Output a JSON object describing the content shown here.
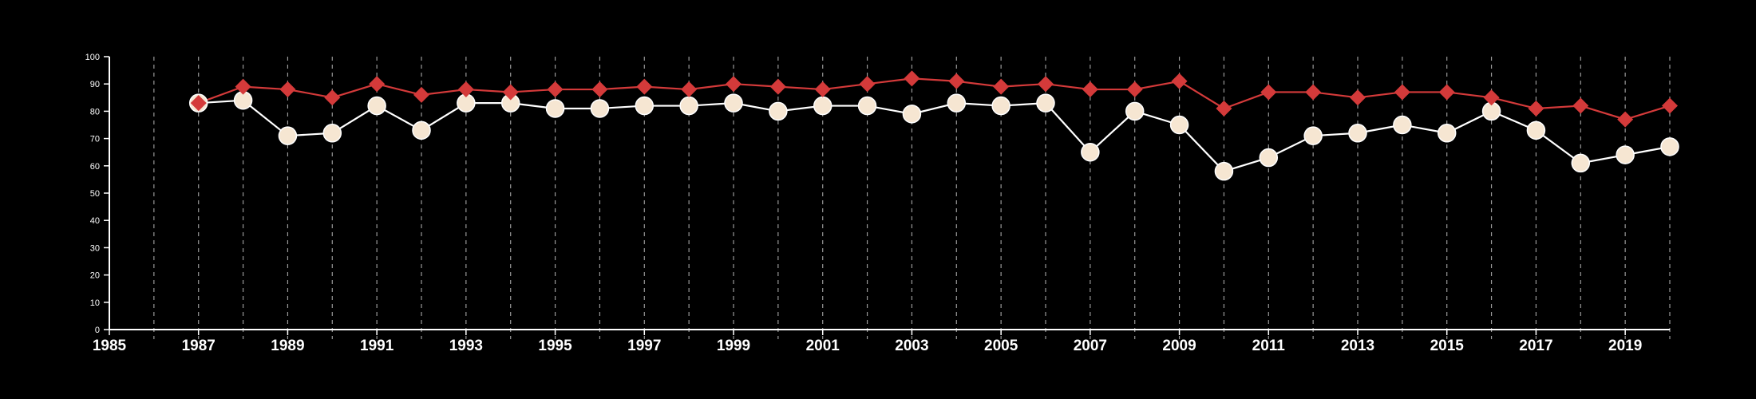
{
  "chart_data": {
    "type": "line",
    "title": "",
    "xlabel": "",
    "ylabel": "",
    "xlim": [
      1985,
      2020
    ],
    "ylim": [
      0,
      100
    ],
    "x_ticks": [
      1985,
      1987,
      1989,
      1991,
      1993,
      1995,
      1997,
      1999,
      2001,
      2003,
      2005,
      2007,
      2009,
      2011,
      2013,
      2015,
      2017,
      2019
    ],
    "y_ticks": [
      0,
      10,
      20,
      30,
      40,
      50,
      60,
      70,
      80,
      90,
      100
    ],
    "vertical_gridlines": "dashed, every year",
    "legend": "none",
    "x": [
      1987,
      1988,
      1989,
      1990,
      1991,
      1992,
      1993,
      1994,
      1995,
      1996,
      1997,
      1998,
      1999,
      2000,
      2001,
      2002,
      2003,
      2004,
      2005,
      2006,
      2007,
      2008,
      2009,
      2010,
      2011,
      2012,
      2013,
      2014,
      2015,
      2016,
      2017,
      2018,
      2019,
      2020
    ],
    "series": [
      {
        "marker": "circle",
        "color": "#ffffff",
        "marker_fill": "#f6e6d2",
        "values": [
          83,
          84,
          71,
          72,
          82,
          73,
          83,
          83,
          81,
          81,
          82,
          82,
          83,
          80,
          82,
          82,
          79,
          83,
          82,
          83,
          65,
          80,
          75,
          58,
          63,
          71,
          72,
          75,
          72,
          80,
          73,
          61,
          64,
          67
        ]
      },
      {
        "marker": "diamond",
        "color": "#d43a3a",
        "values": [
          83,
          89,
          88,
          85,
          90,
          86,
          88,
          87,
          88,
          88,
          89,
          88,
          90,
          89,
          88,
          90,
          92,
          91,
          89,
          90,
          88,
          88,
          91,
          81,
          87,
          87,
          85,
          87,
          87,
          85,
          81,
          82,
          77,
          82
        ]
      }
    ]
  }
}
